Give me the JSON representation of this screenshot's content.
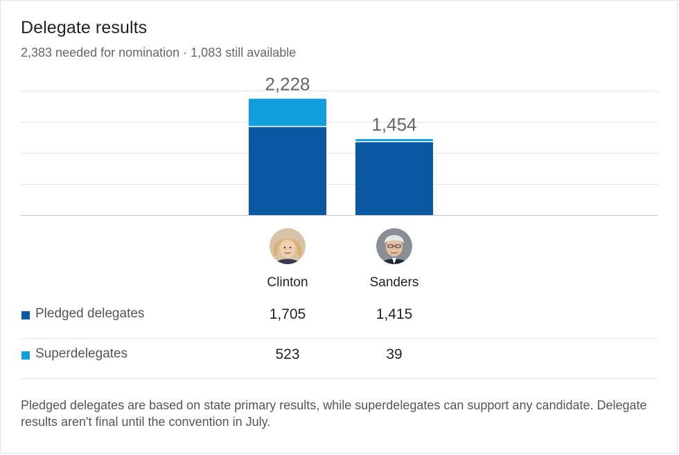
{
  "header": {
    "title": "Delegate results",
    "subtitle": "2,383 needed for nomination · 1,083 still available"
  },
  "colors": {
    "pledged": "#0a57a4",
    "super": "#0e9fdc",
    "grid": "#e4e4e4",
    "total_label": "#666666"
  },
  "chart_data": {
    "type": "bar",
    "stacked": true,
    "categories": [
      "Clinton",
      "Sanders"
    ],
    "series": [
      {
        "name": "Pledged delegates",
        "values": [
          1705,
          1415
        ]
      },
      {
        "name": "Superdelegates",
        "values": [
          523,
          39
        ]
      }
    ],
    "totals": [
      "2,228",
      "1,454"
    ],
    "ylim": [
      0,
      2383
    ],
    "grid": true
  },
  "candidates": [
    {
      "name": "Clinton",
      "avatar": "clinton-portrait"
    },
    {
      "name": "Sanders",
      "avatar": "sanders-portrait"
    }
  ],
  "table": {
    "rows": [
      {
        "label": "Pledged delegates",
        "values": [
          "1,705",
          "1,415"
        ]
      },
      {
        "label": "Superdelegates",
        "values": [
          "523",
          "39"
        ]
      }
    ]
  },
  "footnote": "Pledged delegates are based on state primary results, while superdelegates can support any candidate. Delegate results aren't final until the convention in July."
}
